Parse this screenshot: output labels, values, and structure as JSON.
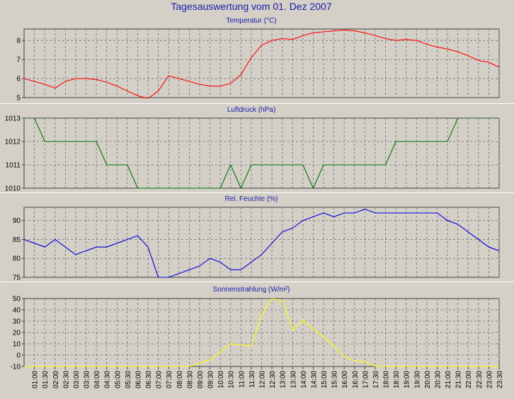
{
  "page_title": "Tagesauswertung vom 01. Dez 2007",
  "chart_data": [
    {
      "type": "line",
      "title": "Temperatur (°C)",
      "color": "#ff0000",
      "ylim": [
        5,
        8.6
      ],
      "yticks": [
        5,
        6,
        7,
        8
      ],
      "grid": true,
      "x": [
        "00:30",
        "01:00",
        "01:30",
        "02:00",
        "02:30",
        "03:00",
        "03:30",
        "04:00",
        "04:30",
        "05:00",
        "05:30",
        "06:00",
        "06:30",
        "07:00",
        "07:30",
        "08:00",
        "08:30",
        "09:00",
        "09:30",
        "10:00",
        "10:30",
        "11:00",
        "11:30",
        "12:00",
        "12:30",
        "13:00",
        "13:30",
        "14:00",
        "14:30",
        "15:00",
        "15:30",
        "16:00",
        "16:30",
        "17:00",
        "17:30",
        "18:00",
        "18:30",
        "19:00",
        "19:30",
        "20:00",
        "20:30",
        "21:00",
        "21:30",
        "22:00",
        "22:30",
        "23:00",
        "23:30"
      ],
      "values": [
        6.0,
        5.85,
        5.7,
        5.5,
        5.85,
        6.0,
        6.0,
        5.95,
        5.8,
        5.6,
        5.35,
        5.1,
        4.95,
        5.35,
        6.15,
        6.0,
        5.85,
        5.7,
        5.6,
        5.6,
        5.75,
        6.2,
        7.1,
        7.75,
        8.0,
        8.1,
        8.05,
        8.25,
        8.4,
        8.45,
        8.5,
        8.55,
        8.5,
        8.4,
        8.25,
        8.1,
        8.0,
        8.05,
        8.0,
        7.8,
        7.65,
        7.55,
        7.4,
        7.2,
        6.95,
        6.85,
        6.6
      ]
    },
    {
      "type": "line",
      "title": "Luftdruck (hPa)",
      "color": "#007000",
      "ylim": [
        1010,
        1013
      ],
      "yticks": [
        1010,
        1011,
        1012,
        1013
      ],
      "grid": true,
      "x": [
        "00:30",
        "01:00",
        "01:30",
        "02:00",
        "02:30",
        "03:00",
        "03:30",
        "04:00",
        "04:30",
        "05:00",
        "05:30",
        "06:00",
        "06:30",
        "07:00",
        "07:30",
        "08:00",
        "08:30",
        "09:00",
        "09:30",
        "10:00",
        "10:30",
        "11:00",
        "11:30",
        "12:00",
        "12:30",
        "13:00",
        "13:30",
        "14:00",
        "14:30",
        "15:00",
        "15:30",
        "16:00",
        "16:30",
        "17:00",
        "17:30",
        "18:00",
        "18:30",
        "19:00",
        "19:30",
        "20:00",
        "20:30",
        "21:00",
        "21:30",
        "22:00",
        "22:30",
        "23:00",
        "23:30"
      ],
      "values": [
        1013,
        1013,
        1012,
        1012,
        1012,
        1012,
        1012,
        1012,
        1011,
        1011,
        1011,
        1010,
        1010,
        1010,
        1010,
        1010,
        1010,
        1010,
        1010,
        1010,
        1011,
        1010,
        1011,
        1011,
        1011,
        1011,
        1011,
        1011,
        1010,
        1011,
        1011,
        1011,
        1011,
        1011,
        1011,
        1011,
        1012,
        1012,
        1012,
        1012,
        1012,
        1012,
        1013,
        1013,
        1013,
        1013,
        1013
      ]
    },
    {
      "type": "line",
      "title": "Rel. Feuchte (%)",
      "color": "#0000dd",
      "ylim": [
        75,
        93.5
      ],
      "yticks": [
        75,
        80,
        85,
        90
      ],
      "grid": true,
      "x": [
        "00:30",
        "01:00",
        "01:30",
        "02:00",
        "02:30",
        "03:00",
        "03:30",
        "04:00",
        "04:30",
        "05:00",
        "05:30",
        "06:00",
        "06:30",
        "07:00",
        "07:30",
        "08:00",
        "08:30",
        "09:00",
        "09:30",
        "10:00",
        "10:30",
        "11:00",
        "11:30",
        "12:00",
        "12:30",
        "13:00",
        "13:30",
        "14:00",
        "14:30",
        "15:00",
        "15:30",
        "16:00",
        "16:30",
        "17:00",
        "17:30",
        "18:00",
        "18:30",
        "19:00",
        "19:30",
        "20:00",
        "20:30",
        "21:00",
        "21:30",
        "22:00",
        "22:30",
        "23:00",
        "23:30"
      ],
      "values": [
        85,
        84,
        83,
        85,
        83,
        81,
        82,
        83,
        83,
        84,
        85,
        86,
        83,
        75,
        75,
        76,
        77,
        78,
        80,
        79,
        77,
        77,
        79,
        81,
        84,
        87,
        88,
        90,
        91,
        92,
        91,
        92,
        92,
        93,
        92,
        92,
        92,
        92,
        92,
        92,
        92,
        90,
        89,
        87,
        85,
        83,
        82
      ]
    },
    {
      "type": "line",
      "title": "Sonnenstrahlung (W/m²)",
      "color": "#ffff00",
      "ylim": [
        -10,
        50
      ],
      "yticks": [
        -10,
        0,
        10,
        20,
        30,
        40,
        50
      ],
      "grid": true,
      "x": [
        "00:30",
        "01:00",
        "01:30",
        "02:00",
        "02:30",
        "03:00",
        "03:30",
        "04:00",
        "04:30",
        "05:00",
        "05:30",
        "06:00",
        "06:30",
        "07:00",
        "07:30",
        "08:00",
        "08:30",
        "09:00",
        "09:30",
        "10:00",
        "10:30",
        "11:00",
        "11:30",
        "12:00",
        "12:30",
        "13:00",
        "13:30",
        "14:00",
        "14:30",
        "15:00",
        "15:30",
        "16:00",
        "16:30",
        "17:00",
        "17:30",
        "18:00",
        "18:30",
        "19:00",
        "19:30",
        "20:00",
        "20:30",
        "21:00",
        "21:30",
        "22:00",
        "22:30",
        "23:00",
        "23:30"
      ],
      "values": [
        -10,
        -10,
        -10,
        -10,
        -10,
        -10,
        -10,
        -10,
        -10,
        -10,
        -10,
        -10,
        -10,
        -10,
        -10,
        -10,
        -10,
        -7,
        -4,
        3,
        10,
        9,
        8,
        35,
        50,
        48,
        22,
        31,
        23,
        16,
        8,
        -1,
        -5,
        -6,
        -10,
        -10,
        -10,
        -10,
        -10,
        -10,
        -10,
        -10,
        -10,
        -10,
        -10,
        -10,
        -10
      ]
    }
  ],
  "x_tick_labels": [
    "01:00",
    "01:30",
    "02:00",
    "02:30",
    "03:00",
    "03:30",
    "04:00",
    "04:30",
    "05:00",
    "05:30",
    "06:00",
    "06:30",
    "07:00",
    "07:30",
    "08:00",
    "08:30",
    "09:00",
    "09:30",
    "10:00",
    "10:30",
    "11:00",
    "11:30",
    "12:00",
    "12:30",
    "13:00",
    "13:30",
    "14:00",
    "14:30",
    "15:00",
    "15:30",
    "16:00",
    "16:30",
    "17:00",
    "17:30",
    "18:00",
    "18:30",
    "19:00",
    "19:30",
    "20:00",
    "20:30",
    "21:00",
    "21:30",
    "22:00",
    "22:30",
    "23:00",
    "23:30"
  ]
}
